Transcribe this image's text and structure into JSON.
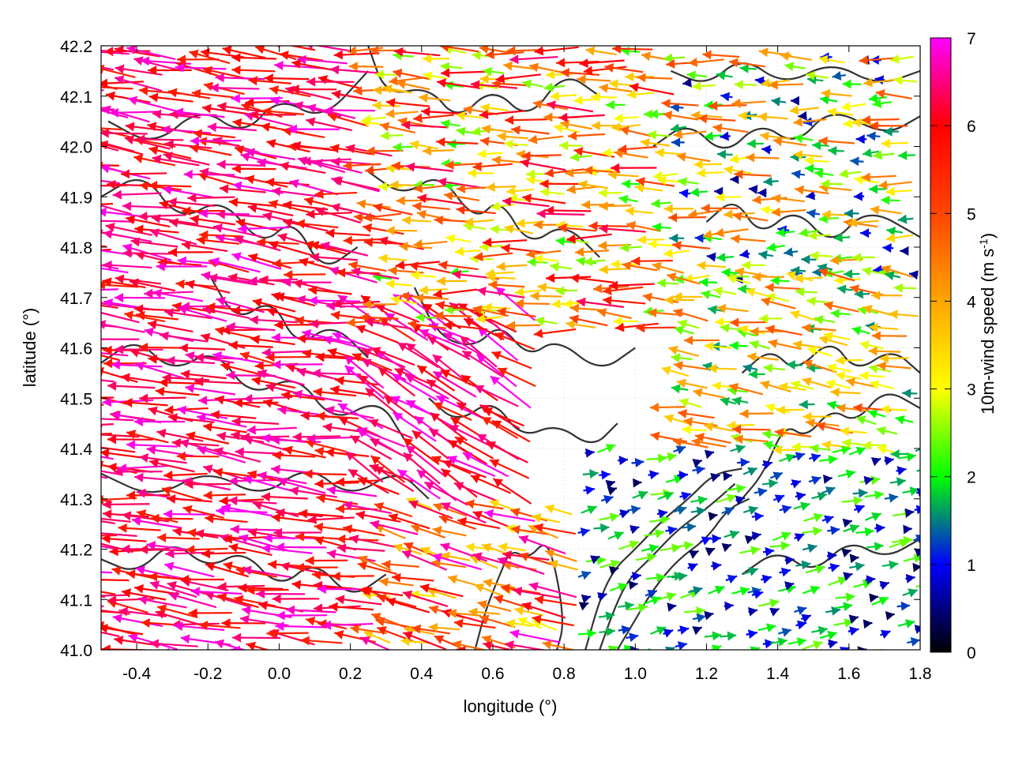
{
  "chart_data": {
    "type": "vector-field",
    "xlabel": "longitude (°)",
    "ylabel": "latitude (°)",
    "colorbar": {
      "label_main": "10m-wind speed (m s",
      "label_sup": "-1",
      "label_end": ")",
      "range": [
        0,
        7
      ],
      "ticks": [
        "0",
        "1",
        "2",
        "3",
        "4",
        "5",
        "6",
        "7"
      ],
      "stops": [
        {
          "value": 0,
          "color": "#000000"
        },
        {
          "value": 1,
          "color": "#0000ff"
        },
        {
          "value": 2,
          "color": "#00ff00"
        },
        {
          "value": 3,
          "color": "#ffff00"
        },
        {
          "value": 4,
          "color": "#ffa500"
        },
        {
          "value": 5,
          "color": "#ff4500"
        },
        {
          "value": 6,
          "color": "#ff0000"
        },
        {
          "value": 7,
          "color": "#ff00ff"
        }
      ]
    },
    "xlim": [
      -0.5,
      1.8
    ],
    "ylim": [
      41.0,
      42.2
    ],
    "xticks": [
      {
        "value": -0.4,
        "label": "-0.4"
      },
      {
        "value": -0.2,
        "label": "-0.2"
      },
      {
        "value": 0.0,
        "label": "0.0"
      },
      {
        "value": 0.2,
        "label": "0.2"
      },
      {
        "value": 0.4,
        "label": "0.4"
      },
      {
        "value": 0.6,
        "label": "0.6"
      },
      {
        "value": 0.8,
        "label": "0.8"
      },
      {
        "value": 1.0,
        "label": "1.0"
      },
      {
        "value": 1.2,
        "label": "1.2"
      },
      {
        "value": 1.4,
        "label": "1.4"
      },
      {
        "value": 1.6,
        "label": "1.6"
      },
      {
        "value": 1.8,
        "label": "1.8"
      }
    ],
    "yticks": [
      {
        "value": 41.0,
        "label": "41.0"
      },
      {
        "value": 41.1,
        "label": "41.1"
      },
      {
        "value": 41.2,
        "label": "41.2"
      },
      {
        "value": 41.3,
        "label": "41.3"
      },
      {
        "value": 41.4,
        "label": "41.4"
      },
      {
        "value": 41.5,
        "label": "41.5"
      },
      {
        "value": 41.6,
        "label": "41.6"
      },
      {
        "value": 41.7,
        "label": "41.7"
      },
      {
        "value": 41.8,
        "label": "41.8"
      },
      {
        "value": 41.9,
        "label": "41.9"
      },
      {
        "value": 42.0,
        "label": "42.0"
      },
      {
        "value": 42.1,
        "label": "42.1"
      },
      {
        "value": 42.2,
        "label": "42.2"
      }
    ],
    "grid": "dotted",
    "arrow_color_encoding": "speed",
    "contour_color": "#333333",
    "wind_regions": [
      {
        "name": "west-strong",
        "x": [
          -0.5,
          0.3
        ],
        "y": [
          41.0,
          42.2
        ],
        "u": -1.0,
        "v": 0.12,
        "speed": [
          5.5,
          7.0
        ]
      },
      {
        "name": "center-nw",
        "x": [
          0.3,
          0.75
        ],
        "y": [
          41.3,
          41.65
        ],
        "u": -0.85,
        "v": 0.5,
        "speed": [
          5.5,
          7.0
        ]
      },
      {
        "name": "north-central",
        "x": [
          0.3,
          1.15
        ],
        "y": [
          41.65,
          42.2
        ],
        "u": -1.0,
        "v": 0.05,
        "speed": [
          2.0,
          6.5
        ]
      },
      {
        "name": "north-east",
        "x": [
          1.15,
          1.8
        ],
        "y": [
          41.75,
          42.2
        ],
        "u": -1.0,
        "v": 0.0,
        "speed": [
          0.5,
          5.0
        ]
      },
      {
        "name": "east-mid",
        "x": [
          1.15,
          1.8
        ],
        "y": [
          41.4,
          41.75
        ],
        "u": -1.0,
        "v": 0.15,
        "speed": [
          1.5,
          5.0
        ]
      },
      {
        "name": "southeast-calm",
        "x": [
          0.85,
          1.8
        ],
        "y": [
          41.0,
          41.4
        ],
        "u": 1.0,
        "v": 0.25,
        "speed": [
          0.3,
          2.5
        ]
      },
      {
        "name": "south-central",
        "x": [
          0.3,
          0.85
        ],
        "y": [
          41.0,
          41.3
        ],
        "u": -1.0,
        "v": 0.25,
        "speed": [
          3.0,
          7.0
        ]
      }
    ],
    "contours": [
      [
        [
          -0.5,
          41.57
        ],
        [
          -0.4,
          41.62
        ],
        [
          -0.3,
          41.55
        ],
        [
          -0.18,
          41.6
        ],
        [
          -0.08,
          41.5
        ],
        [
          0.05,
          41.55
        ],
        [
          0.15,
          41.45
        ],
        [
          0.28,
          41.5
        ],
        [
          0.35,
          41.42
        ]
      ],
      [
        [
          -0.5,
          41.35
        ],
        [
          -0.35,
          41.3
        ],
        [
          -0.2,
          41.36
        ],
        [
          -0.05,
          41.3
        ],
        [
          0.08,
          41.37
        ],
        [
          0.2,
          41.3
        ],
        [
          0.33,
          41.36
        ],
        [
          0.42,
          41.3
        ]
      ],
      [
        [
          -0.5,
          41.9
        ],
        [
          -0.38,
          41.95
        ],
        [
          -0.28,
          41.85
        ],
        [
          -0.16,
          41.9
        ],
        [
          -0.05,
          41.8
        ],
        [
          0.04,
          41.86
        ],
        [
          0.12,
          41.75
        ],
        [
          0.22,
          41.8
        ]
      ],
      [
        [
          -0.48,
          42.05
        ],
        [
          -0.35,
          42.0
        ],
        [
          -0.22,
          42.08
        ],
        [
          -0.1,
          42.02
        ],
        [
          0.0,
          42.1
        ],
        [
          0.12,
          42.05
        ],
        [
          0.25,
          42.15
        ]
      ],
      [
        [
          -0.2,
          41.75
        ],
        [
          -0.12,
          41.65
        ],
        [
          -0.02,
          41.7
        ],
        [
          0.05,
          41.6
        ],
        [
          0.15,
          41.65
        ],
        [
          0.25,
          41.58
        ]
      ],
      [
        [
          0.25,
          42.2
        ],
        [
          0.3,
          42.1
        ],
        [
          0.42,
          42.12
        ],
        [
          0.5,
          42.05
        ],
        [
          0.6,
          42.12
        ],
        [
          0.7,
          42.05
        ],
        [
          0.8,
          42.15
        ],
        [
          0.9,
          42.1
        ]
      ],
      [
        [
          0.25,
          41.95
        ],
        [
          0.35,
          41.9
        ],
        [
          0.45,
          41.95
        ],
        [
          0.55,
          41.85
        ],
        [
          0.62,
          41.9
        ],
        [
          0.7,
          41.8
        ],
        [
          0.8,
          41.85
        ],
        [
          0.9,
          41.78
        ]
      ],
      [
        [
          0.38,
          41.72
        ],
        [
          0.45,
          41.62
        ],
        [
          0.55,
          41.6
        ],
        [
          0.62,
          41.65
        ],
        [
          0.7,
          41.58
        ],
        [
          0.78,
          41.62
        ],
        [
          0.9,
          41.55
        ],
        [
          1.0,
          41.6
        ]
      ],
      [
        [
          0.42,
          41.5
        ],
        [
          0.5,
          41.45
        ],
        [
          0.6,
          41.5
        ],
        [
          0.68,
          41.42
        ],
        [
          0.78,
          41.45
        ],
        [
          0.88,
          41.4
        ],
        [
          0.95,
          41.45
        ]
      ],
      [
        [
          0.55,
          41.0
        ],
        [
          0.58,
          41.08
        ],
        [
          0.62,
          41.15
        ],
        [
          0.65,
          41.2
        ],
        [
          0.7,
          41.18
        ],
        [
          0.75,
          41.22
        ],
        [
          0.78,
          41.15
        ],
        [
          0.8,
          41.05
        ],
        [
          0.78,
          41.0
        ]
      ],
      [
        [
          0.86,
          41.0
        ],
        [
          0.9,
          41.1
        ],
        [
          0.94,
          41.16
        ],
        [
          1.0,
          41.2
        ],
        [
          1.08,
          41.26
        ],
        [
          1.15,
          41.3
        ],
        [
          1.22,
          41.35
        ],
        [
          1.3,
          41.36
        ]
      ],
      [
        [
          0.9,
          41.0
        ],
        [
          0.94,
          41.08
        ],
        [
          0.98,
          41.14
        ],
        [
          1.04,
          41.18
        ],
        [
          1.12,
          41.24
        ],
        [
          1.2,
          41.28
        ],
        [
          1.28,
          41.33
        ]
      ],
      [
        [
          0.95,
          41.0
        ],
        [
          1.0,
          41.06
        ],
        [
          1.05,
          41.12
        ],
        [
          1.12,
          41.18
        ],
        [
          1.2,
          41.22
        ],
        [
          1.26,
          41.28
        ],
        [
          1.32,
          41.3
        ]
      ],
      [
        [
          1.3,
          41.3
        ],
        [
          1.36,
          41.35
        ],
        [
          1.42,
          41.45
        ],
        [
          1.48,
          41.42
        ],
        [
          1.55,
          41.48
        ],
        [
          1.62,
          41.45
        ],
        [
          1.7,
          41.52
        ],
        [
          1.8,
          41.48
        ]
      ],
      [
        [
          1.3,
          41.55
        ],
        [
          1.38,
          41.6
        ],
        [
          1.45,
          41.55
        ],
        [
          1.55,
          41.62
        ],
        [
          1.62,
          41.55
        ],
        [
          1.72,
          41.6
        ],
        [
          1.8,
          41.55
        ]
      ],
      [
        [
          1.2,
          41.85
        ],
        [
          1.28,
          41.9
        ],
        [
          1.35,
          41.82
        ],
        [
          1.45,
          41.88
        ],
        [
          1.55,
          41.8
        ],
        [
          1.65,
          41.88
        ],
        [
          1.8,
          41.82
        ]
      ],
      [
        [
          1.05,
          42.0
        ],
        [
          1.15,
          42.05
        ],
        [
          1.25,
          41.98
        ],
        [
          1.35,
          42.05
        ],
        [
          1.45,
          42.0
        ],
        [
          1.55,
          42.08
        ],
        [
          1.7,
          42.02
        ],
        [
          1.8,
          42.06
        ]
      ],
      [
        [
          1.1,
          42.15
        ],
        [
          1.2,
          42.12
        ],
        [
          1.3,
          42.18
        ],
        [
          1.42,
          42.12
        ],
        [
          1.55,
          42.17
        ],
        [
          1.68,
          42.12
        ],
        [
          1.8,
          42.15
        ]
      ],
      [
        [
          1.3,
          41.15
        ],
        [
          1.4,
          41.2
        ],
        [
          1.5,
          41.15
        ],
        [
          1.6,
          41.22
        ],
        [
          1.7,
          41.18
        ],
        [
          1.8,
          41.22
        ]
      ],
      [
        [
          -0.5,
          41.18
        ],
        [
          -0.4,
          41.15
        ],
        [
          -0.3,
          41.22
        ],
        [
          -0.2,
          41.16
        ],
        [
          -0.1,
          41.2
        ],
        [
          0.0,
          41.12
        ],
        [
          0.1,
          41.18
        ],
        [
          0.2,
          41.1
        ],
        [
          0.3,
          41.15
        ]
      ]
    ]
  }
}
